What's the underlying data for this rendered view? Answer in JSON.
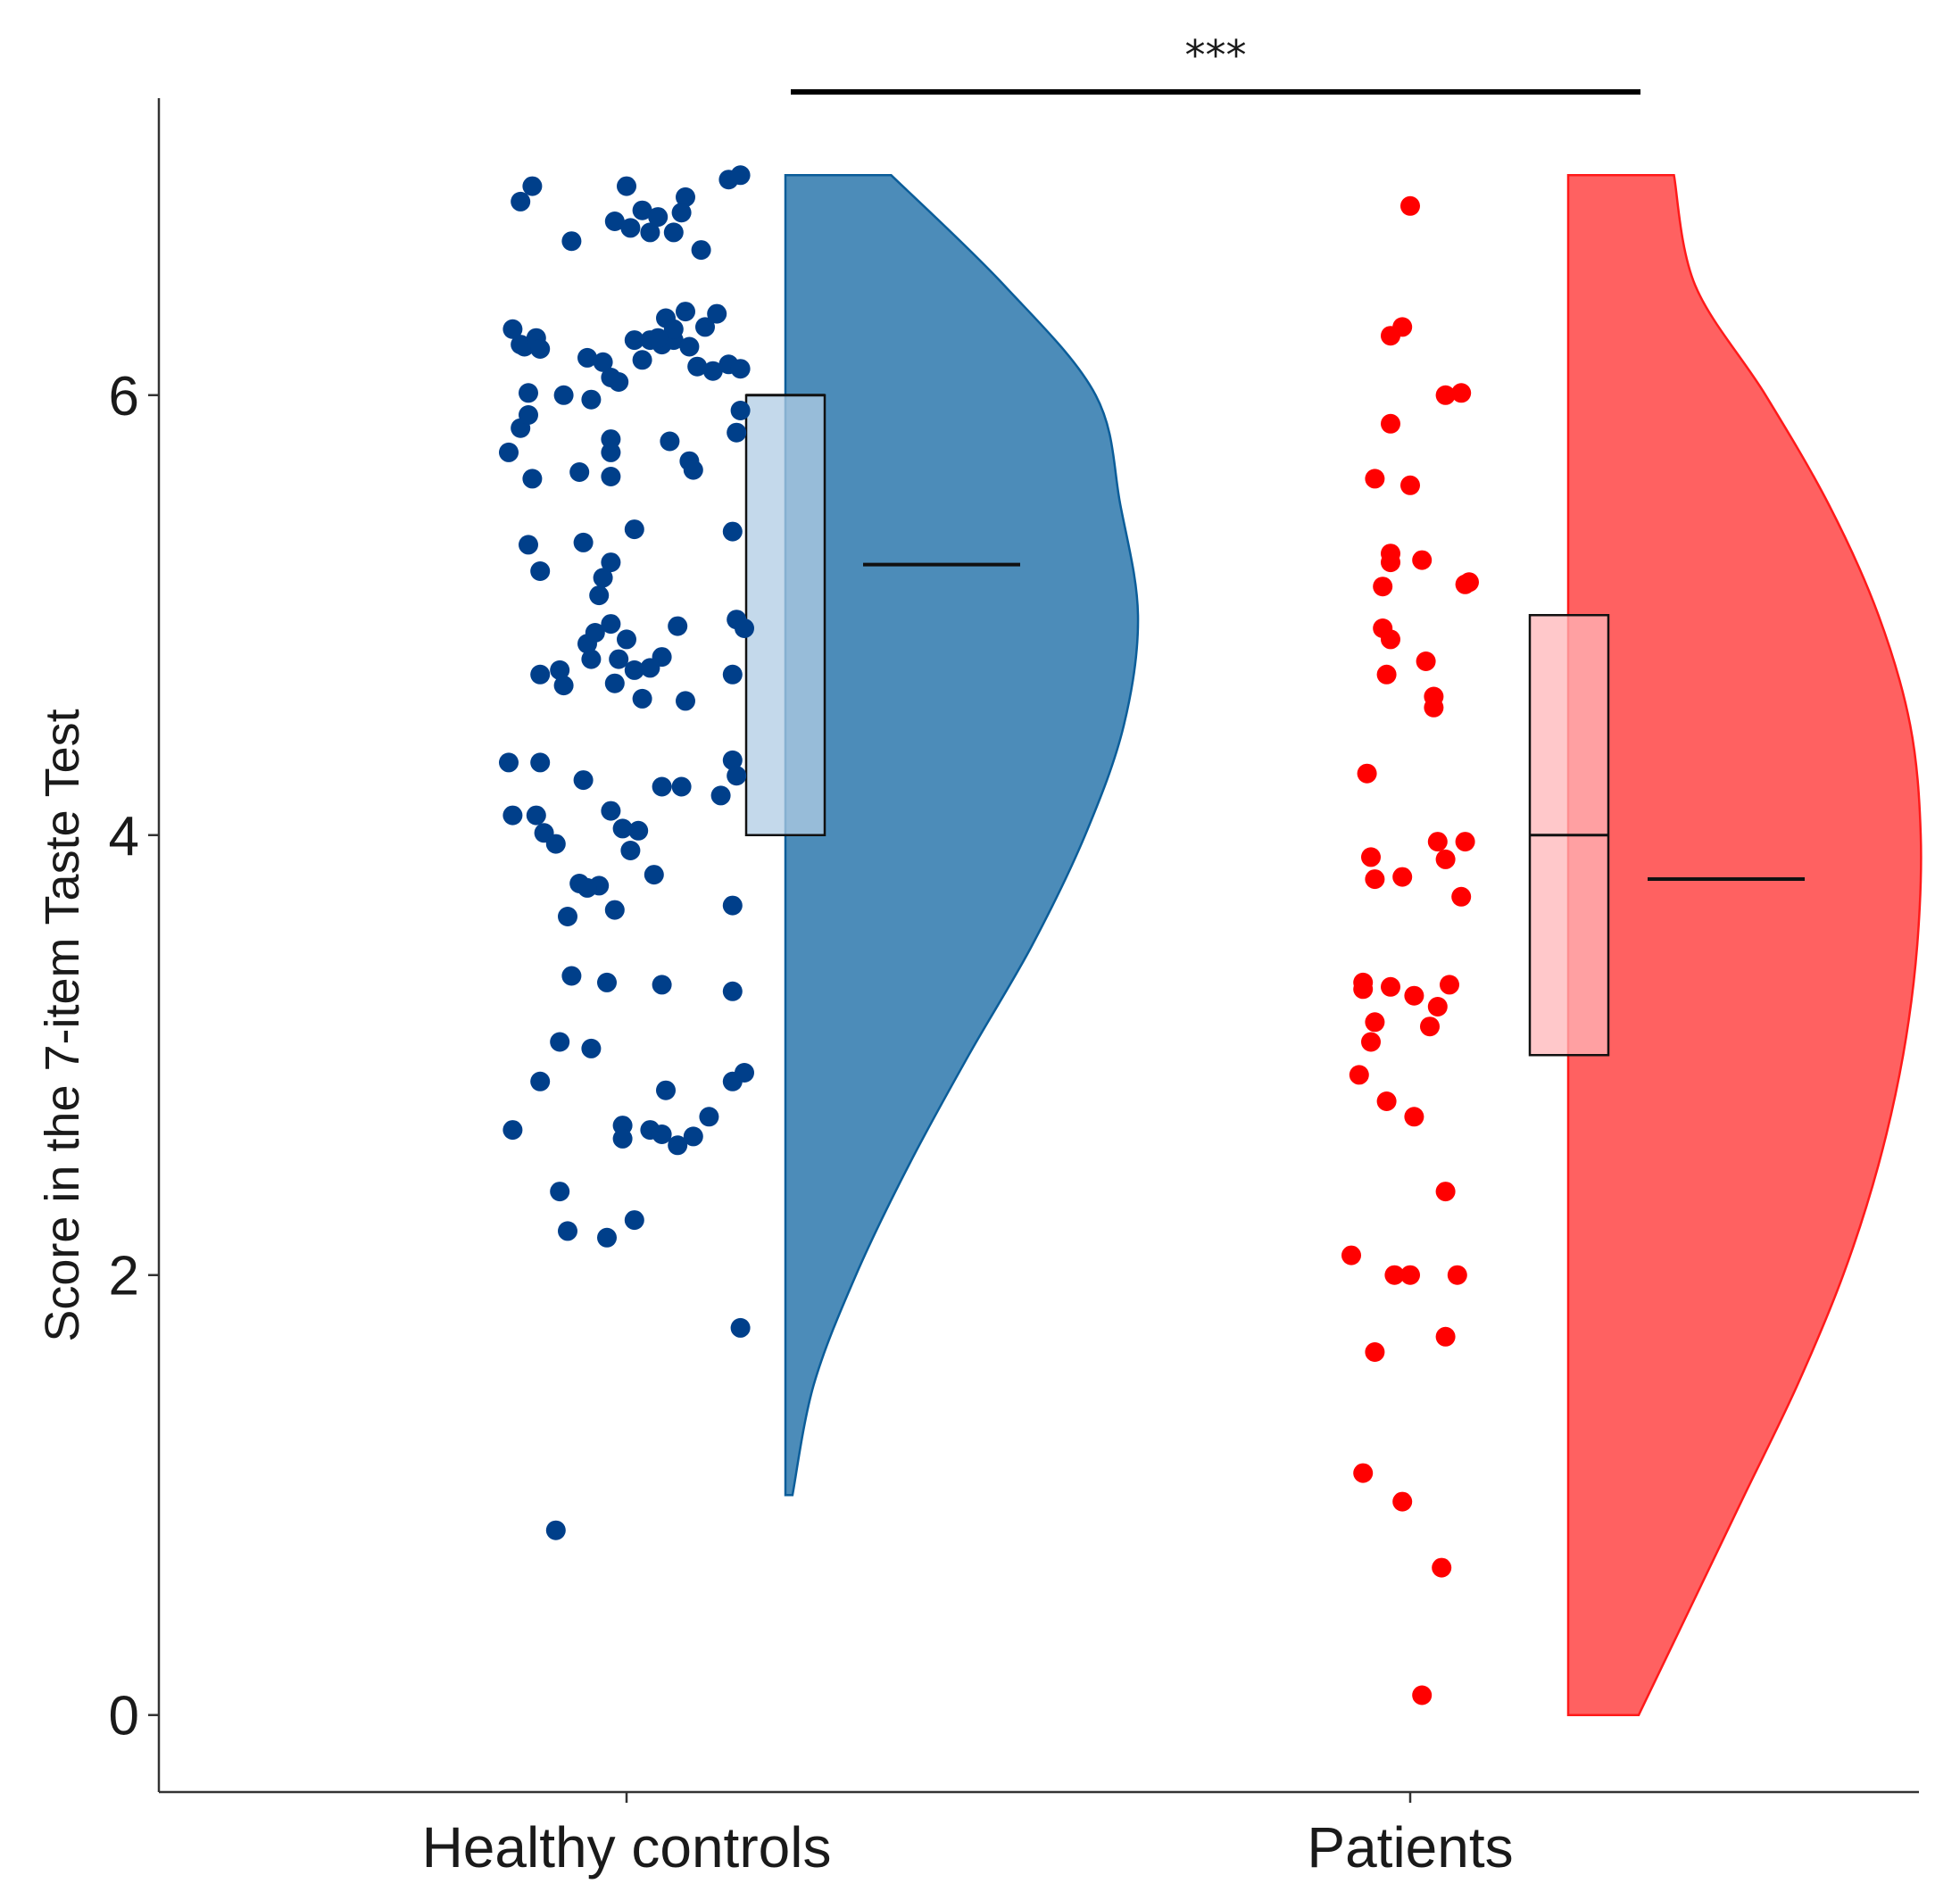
{
  "chart_data": {
    "type": "raincloud",
    "title": "",
    "xlabel": "",
    "ylabel": "Score in the 7-item Taste Test",
    "ylim": [
      -0.35,
      7.35
    ],
    "yticks": [
      0,
      2,
      4,
      6
    ],
    "ytick_labels": [
      "0",
      "2",
      "4",
      "6"
    ],
    "categories": [
      "Healthy controls",
      "Patients"
    ],
    "significance": {
      "label": "***",
      "between": [
        "Healthy controls",
        "Patients"
      ]
    },
    "colors": {
      "controls_point": "#003f8a",
      "controls_fill": "#1f6fa8",
      "controls_stroke": "#0b5d99",
      "controls_box": "#b0cce4",
      "patients_point": "#ff0000",
      "patients_fill": "#ff3535",
      "patients_stroke": "#ff1a1a",
      "patients_box": "#ffb6b8",
      "axis": "#333333"
    },
    "series": [
      {
        "name": "Healthy controls",
        "box": {
          "q1": 4,
          "median": 6,
          "q3": 6
        },
        "mean": 5.23,
        "density": {
          "y": [
            1,
            1.5,
            2,
            2.5,
            3,
            3.5,
            4,
            4.5,
            5,
            5.5,
            6,
            6.5,
            7
          ],
          "w": [
            0.02,
            0.08,
            0.2,
            0.35,
            0.52,
            0.7,
            0.85,
            0.96,
            1.0,
            0.95,
            0.88,
            0.62,
            0.3
          ]
        },
        "points": [
          [
            -0.29,
            6.3
          ],
          [
            -0.27,
            6.23
          ],
          [
            -0.26,
            6.22
          ],
          [
            -0.23,
            6.26
          ],
          [
            -0.22,
            6.21
          ],
          [
            -0.1,
            6.17
          ],
          [
            -0.06,
            6.15
          ],
          [
            -0.04,
            6.08
          ],
          [
            -0.02,
            6.06
          ],
          [
            0.02,
            6.25
          ],
          [
            0.04,
            6.16
          ],
          [
            0.06,
            6.25
          ],
          [
            0.09,
            6.23
          ],
          [
            0.12,
            6.25
          ],
          [
            0.16,
            6.22
          ],
          [
            0.18,
            6.13
          ],
          [
            0.22,
            6.11
          ],
          [
            0.26,
            6.14
          ],
          [
            0.29,
            6.12
          ],
          [
            0.1,
            6.35
          ],
          [
            0.15,
            6.38
          ],
          [
            0.12,
            6.3
          ],
          [
            0.2,
            6.31
          ],
          [
            0.23,
            6.37
          ],
          [
            0.08,
            6.26
          ],
          [
            -0.25,
            6.01
          ],
          [
            -0.16,
            6.0
          ],
          [
            -0.09,
            5.98
          ],
          [
            -0.04,
            5.8
          ],
          [
            -0.04,
            5.74
          ],
          [
            0.11,
            5.79
          ],
          [
            0.16,
            5.7
          ],
          [
            0.17,
            5.66
          ],
          [
            0.29,
            5.93
          ],
          [
            0.28,
            5.83
          ],
          [
            -0.27,
            5.85
          ],
          [
            -0.25,
            5.91
          ],
          [
            -0.3,
            5.74
          ],
          [
            -0.24,
            5.62
          ],
          [
            -0.12,
            5.65
          ],
          [
            -0.04,
            5.63
          ],
          [
            -0.27,
            6.88
          ],
          [
            -0.24,
            6.95
          ],
          [
            -0.14,
            6.7
          ],
          [
            -0.03,
            6.79
          ],
          [
            0.01,
            6.76
          ],
          [
            0.04,
            6.84
          ],
          [
            0.06,
            6.74
          ],
          [
            0.08,
            6.81
          ],
          [
            0.12,
            6.74
          ],
          [
            0.15,
            6.9
          ],
          [
            0.19,
            6.66
          ],
          [
            0.26,
            6.98
          ],
          [
            0.29,
            7.0
          ],
          [
            0.14,
            6.83
          ],
          [
            0.0,
            6.95
          ],
          [
            -0.25,
            5.32
          ],
          [
            -0.22,
            5.2
          ],
          [
            -0.11,
            5.33
          ],
          [
            -0.07,
            5.09
          ],
          [
            -0.06,
            5.17
          ],
          [
            -0.04,
            5.24
          ],
          [
            0.02,
            5.39
          ],
          [
            0.13,
            4.95
          ],
          [
            0.27,
            5.38
          ],
          [
            0.28,
            4.98
          ],
          [
            0.3,
            4.94
          ],
          [
            -0.22,
            4.73
          ],
          [
            -0.17,
            4.75
          ],
          [
            -0.16,
            4.68
          ],
          [
            -0.1,
            4.87
          ],
          [
            -0.08,
            4.92
          ],
          [
            -0.04,
            4.96
          ],
          [
            -0.03,
            4.69
          ],
          [
            -0.02,
            4.8
          ],
          [
            0.0,
            4.89
          ],
          [
            0.02,
            4.75
          ],
          [
            0.04,
            4.62
          ],
          [
            0.06,
            4.76
          ],
          [
            0.09,
            4.81
          ],
          [
            0.15,
            4.61
          ],
          [
            0.27,
            4.73
          ],
          [
            -0.09,
            4.8
          ],
          [
            -0.3,
            4.33
          ],
          [
            -0.22,
            4.33
          ],
          [
            -0.11,
            4.25
          ],
          [
            -0.04,
            4.11
          ],
          [
            -0.01,
            4.03
          ],
          [
            0.03,
            4.02
          ],
          [
            0.09,
            4.22
          ],
          [
            0.14,
            4.22
          ],
          [
            0.24,
            4.18
          ],
          [
            0.27,
            4.34
          ],
          [
            0.28,
            4.27
          ],
          [
            -0.29,
            4.09
          ],
          [
            -0.21,
            4.01
          ],
          [
            -0.23,
            4.09
          ],
          [
            -0.18,
            3.96
          ],
          [
            0.01,
            3.93
          ],
          [
            -0.12,
            3.78
          ],
          [
            -0.07,
            3.77
          ],
          [
            -0.03,
            3.66
          ],
          [
            0.07,
            3.82
          ],
          [
            -0.1,
            3.76
          ],
          [
            -0.15,
            3.63
          ],
          [
            0.27,
            3.68
          ],
          [
            -0.14,
            3.36
          ],
          [
            -0.05,
            3.33
          ],
          [
            0.09,
            3.32
          ],
          [
            0.27,
            3.29
          ],
          [
            -0.17,
            3.06
          ],
          [
            -0.09,
            3.03
          ],
          [
            -0.22,
            2.88
          ],
          [
            0.1,
            2.84
          ],
          [
            0.21,
            2.72
          ],
          [
            0.27,
            2.88
          ],
          [
            -0.29,
            2.66
          ],
          [
            -0.01,
            2.68
          ],
          [
            0.06,
            2.66
          ],
          [
            0.09,
            2.64
          ],
          [
            0.17,
            2.63
          ],
          [
            0.3,
            2.92
          ],
          [
            0.13,
            2.59
          ],
          [
            -0.01,
            2.62
          ],
          [
            -0.17,
            2.38
          ],
          [
            -0.15,
            2.2
          ],
          [
            -0.05,
            2.17
          ],
          [
            0.02,
            2.25
          ],
          [
            0.29,
            1.76
          ],
          [
            -0.18,
            0.84
          ]
        ]
      },
      {
        "name": "Patients",
        "box": {
          "q1": 3,
          "median": 4,
          "q3": 5
        },
        "mean": 3.8,
        "density": {
          "y": [
            0,
            0.5,
            1,
            1.5,
            2,
            2.5,
            3,
            3.5,
            4,
            4.5,
            5,
            5.5,
            6,
            6.5,
            7
          ],
          "w": [
            0.2,
            0.35,
            0.5,
            0.65,
            0.78,
            0.88,
            0.95,
            0.99,
            1.0,
            0.97,
            0.88,
            0.74,
            0.56,
            0.36,
            0.3
          ]
        },
        "points": [
          [
            0.0,
            6.86
          ],
          [
            -0.05,
            6.27
          ],
          [
            -0.02,
            6.31
          ],
          [
            0.09,
            6.0
          ],
          [
            0.13,
            6.01
          ],
          [
            -0.05,
            5.87
          ],
          [
            -0.09,
            5.62
          ],
          [
            0.0,
            5.59
          ],
          [
            -0.07,
            5.13
          ],
          [
            -0.05,
            5.24
          ],
          [
            -0.05,
            5.28
          ],
          [
            0.03,
            5.25
          ],
          [
            0.14,
            5.14
          ],
          [
            0.15,
            5.15
          ],
          [
            -0.07,
            4.94
          ],
          [
            -0.05,
            4.89
          ],
          [
            -0.06,
            4.73
          ],
          [
            0.04,
            4.79
          ],
          [
            0.06,
            4.63
          ],
          [
            0.06,
            4.58
          ],
          [
            -0.11,
            4.28
          ],
          [
            -0.1,
            3.9
          ],
          [
            -0.09,
            3.8
          ],
          [
            -0.02,
            3.81
          ],
          [
            0.07,
            3.97
          ],
          [
            0.09,
            3.89
          ],
          [
            0.13,
            3.72
          ],
          [
            0.14,
            3.97
          ],
          [
            -0.12,
            3.33
          ],
          [
            -0.12,
            3.3
          ],
          [
            -0.09,
            3.15
          ],
          [
            -0.1,
            3.06
          ],
          [
            -0.05,
            3.31
          ],
          [
            0.01,
            3.27
          ],
          [
            0.05,
            3.13
          ],
          [
            0.07,
            3.22
          ],
          [
            0.1,
            3.32
          ],
          [
            -0.13,
            2.91
          ],
          [
            -0.06,
            2.79
          ],
          [
            0.01,
            2.72
          ],
          [
            0.09,
            2.38
          ],
          [
            -0.15,
            2.09
          ],
          [
            -0.04,
            2.0
          ],
          [
            0.0,
            2.0
          ],
          [
            0.12,
            2.0
          ],
          [
            -0.09,
            1.65
          ],
          [
            0.09,
            1.72
          ],
          [
            -0.12,
            1.1
          ],
          [
            -0.02,
            0.97
          ],
          [
            0.08,
            0.67
          ],
          [
            0.03,
            0.09
          ]
        ]
      }
    ]
  }
}
